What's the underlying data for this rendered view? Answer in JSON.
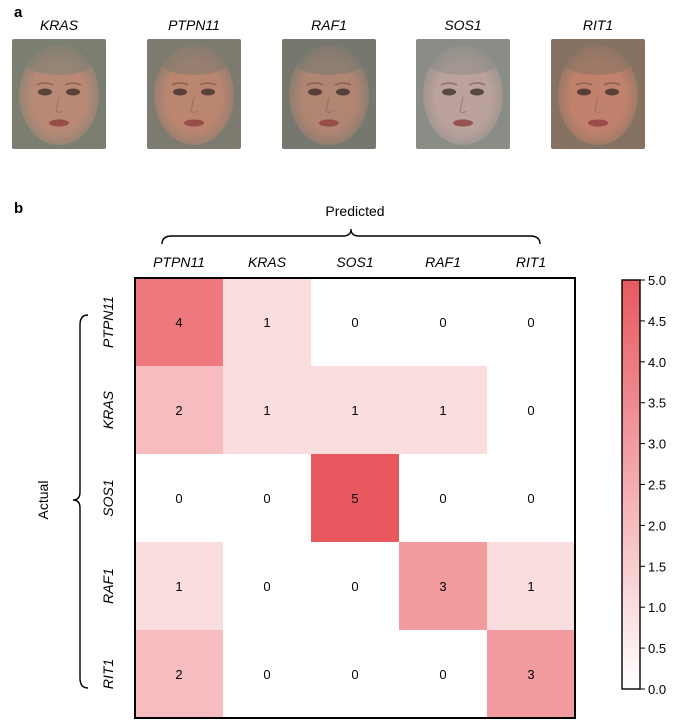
{
  "panel_a": {
    "letter": "a",
    "faces": [
      {
        "gene": "KRAS",
        "skin": "#b88a76",
        "bg": "#7a7f72"
      },
      {
        "gene": "PTPN11",
        "skin": "#bb8670",
        "bg": "#7d7a70"
      },
      {
        "gene": "RAF1",
        "skin": "#b08572",
        "bg": "#76786f"
      },
      {
        "gene": "SOS1",
        "skin": "#bca29c",
        "bg": "#8a8c86"
      },
      {
        "gene": "RIT1",
        "skin": "#c0826c",
        "bg": "#857262"
      }
    ]
  },
  "panel_b": {
    "letter": "b",
    "predicted_label": "Predicted",
    "actual_label": "Actual"
  },
  "chart_data": {
    "type": "heatmap",
    "x_title": "Predicted",
    "y_title": "Actual",
    "columns": [
      "PTPN11",
      "KRAS",
      "SOS1",
      "RAF1",
      "RIT1"
    ],
    "rows": [
      "PTPN11",
      "KRAS",
      "SOS1",
      "RAF1",
      "RIT1"
    ],
    "values": [
      [
        4,
        1,
        0,
        0,
        0
      ],
      [
        2,
        1,
        1,
        1,
        0
      ],
      [
        0,
        0,
        5,
        0,
        0
      ],
      [
        1,
        0,
        0,
        3,
        1
      ],
      [
        2,
        0,
        0,
        0,
        3
      ]
    ],
    "colorbar": {
      "min": 0.0,
      "max": 5.0,
      "ticks": [
        "0.0",
        "0.5",
        "1.0",
        "1.5",
        "2.0",
        "2.5",
        "3.0",
        "3.5",
        "4.0",
        "4.5",
        "5.0"
      ],
      "color_low": "#ffffff",
      "color_high": "#e8585f"
    }
  }
}
